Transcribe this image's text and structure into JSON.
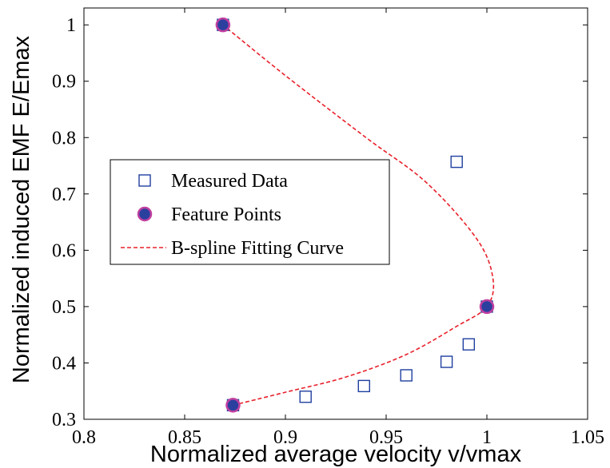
{
  "chart_data": {
    "type": "scatter",
    "xlabel": "Normalized average velocity v/vmax",
    "ylabel": "Normalized induced EMF E/Emax",
    "xlim": [
      0.8,
      1.05
    ],
    "ylim": [
      0.3,
      1.03
    ],
    "xticks": [
      0.8,
      0.85,
      0.9,
      0.95,
      1,
      1.05
    ],
    "xtick_labels": [
      "0.8",
      "0.85",
      "0.9",
      "0.95",
      "1",
      "1.05"
    ],
    "yticks": [
      0.3,
      0.4,
      0.5,
      0.6,
      0.7,
      0.8,
      0.9,
      1
    ],
    "ytick_labels": [
      "0.3",
      "0.4",
      "0.5",
      "0.6",
      "0.7",
      "0.8",
      "0.9",
      "1"
    ],
    "grid": false,
    "legend_position": "center-left",
    "series": [
      {
        "name": "Measured Data",
        "marker": "square",
        "color": "#1f3f9f",
        "x": [
          0.874,
          0.91,
          0.939,
          0.96,
          0.98,
          0.991,
          1.0,
          0.985,
          0.869
        ],
        "y": [
          0.325,
          0.34,
          0.359,
          0.378,
          0.402,
          0.433,
          0.5,
          0.757,
          1.0
        ]
      },
      {
        "name": "Feature Points",
        "marker": "circle",
        "color": "#2b3f9f",
        "edge_color": "#c040a0",
        "x": [
          0.874,
          1.0,
          0.869
        ],
        "y": [
          0.325,
          0.5,
          1.0
        ]
      },
      {
        "name": "B-spline Fitting Curve",
        "style": "dashed",
        "color": "#e8202a",
        "x": [
          0.874,
          0.9,
          0.93,
          0.96,
          0.985,
          1.0,
          1.003,
          0.995,
          0.97,
          0.94,
          0.9,
          0.869
        ],
        "y": [
          0.325,
          0.348,
          0.375,
          0.415,
          0.465,
          0.5,
          0.55,
          0.62,
          0.72,
          0.8,
          0.91,
          1.0
        ]
      }
    ]
  }
}
